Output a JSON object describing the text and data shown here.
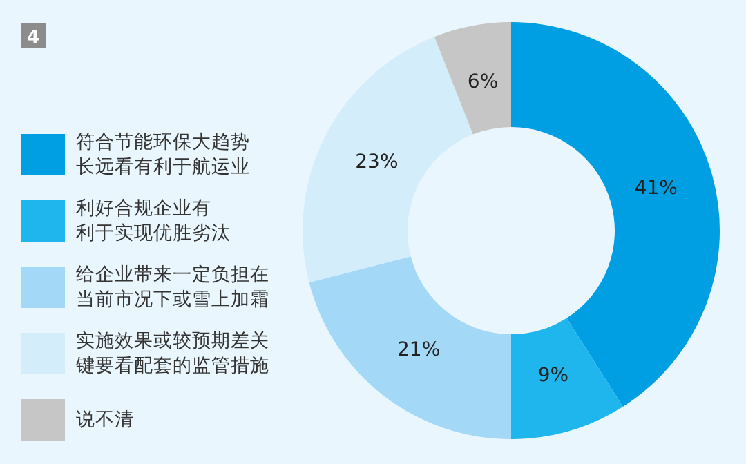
{
  "chart_data": {
    "type": "donut",
    "annotations": [
      "4"
    ],
    "categories": [
      "符合节能环保大趋势长远看有利于航运业",
      "利好合规企业有利于实现优胜劣汰",
      "给企业带来一定负担在当前市况下或雪上加霜",
      "实施效果或较预期差关键要看配套的监管措施",
      "说不清"
    ],
    "values": [
      41,
      9,
      21,
      23,
      6
    ],
    "value_labels": [
      "41%",
      "9%",
      "21%",
      "23%",
      "6%"
    ],
    "colors": [
      "#009fe3",
      "#1fb6ee",
      "#a3d9f6",
      "#d4edfb",
      "#c6c6c6"
    ],
    "legend": "left"
  }
}
